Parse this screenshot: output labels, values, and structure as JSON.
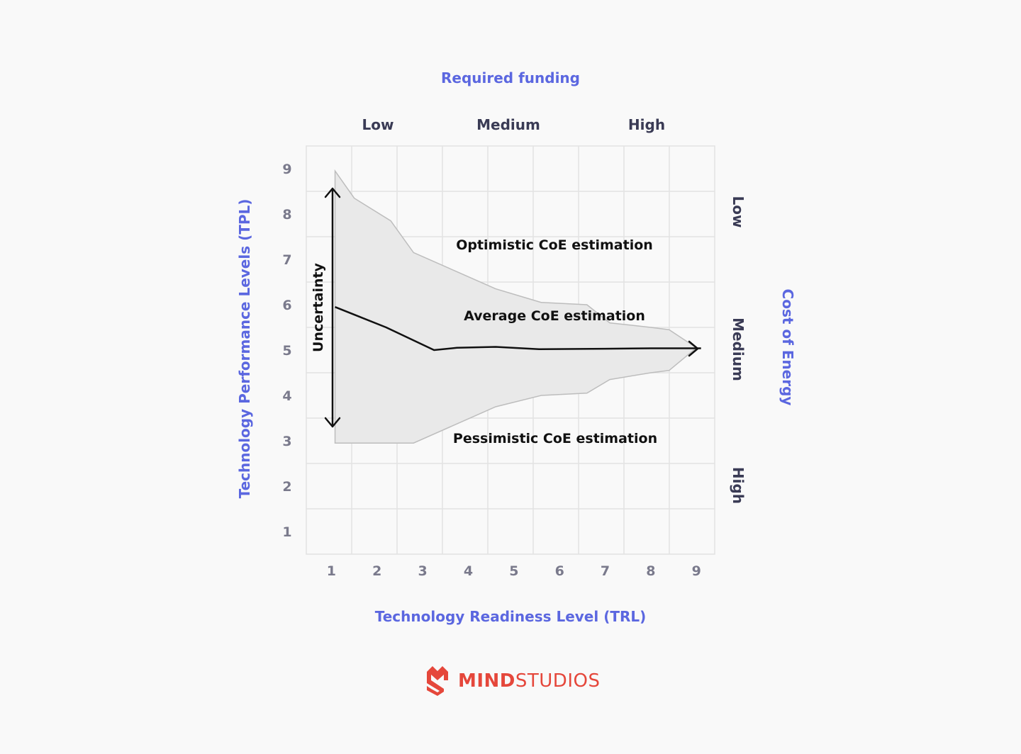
{
  "diagram": {
    "top_title": "Required funding",
    "funding_levels": [
      "Low",
      "Medium",
      "High"
    ],
    "x_label": "Technology Readiness Level (TRL)",
    "y_label": "Technology Performance Levels (TPL)",
    "right_title": "Cost of Energy",
    "energy_levels": [
      "Low",
      "Medium",
      "High"
    ],
    "x_ticks": [
      "1",
      "2",
      "3",
      "4",
      "5",
      "6",
      "7",
      "8",
      "9"
    ],
    "y_ticks": [
      "1",
      "2",
      "3",
      "4",
      "5",
      "6",
      "7",
      "8",
      "9"
    ],
    "optimistic_label": "Optimistic CoE estimation",
    "average_label": "Average CoE estimation",
    "pessimistic_label": "Pessimistic CoE estimation",
    "uncertainty_label": "Uncertainty",
    "band_color": "#e9e9e9",
    "axis_blue": "#5b67e0"
  },
  "chart_data": {
    "type": "area",
    "x": [
      1.08,
      1.5,
      2.3,
      2.8,
      4.6,
      5.6,
      6.6,
      7.1,
      8.0,
      8.4,
      9.0
    ],
    "optimistic": [
      8.95,
      8.35,
      7.85,
      7.15,
      6.35,
      6.05,
      6.0,
      5.6,
      5.5,
      5.45,
      5.05
    ],
    "pessimistic": [
      2.95,
      2.95,
      2.95,
      2.95,
      3.75,
      4.0,
      4.05,
      4.35,
      4.5,
      4.55,
      5.05
    ],
    "average": {
      "x": [
        1.08,
        2.2,
        3.25,
        3.75,
        4.6,
        5.55,
        7.0,
        8.0,
        9.1
      ],
      "y": [
        5.95,
        5.5,
        5.0,
        5.05,
        5.07,
        5.02,
        5.03,
        5.04,
        5.04
      ]
    },
    "xlim": [
      0.45,
      9.4
    ],
    "ylim": [
      0.5,
      9.5
    ],
    "grid": true
  },
  "brand": {
    "name_bold": "MIND",
    "name_light": "STUDIOS",
    "icon": "mindstudios-logo-icon",
    "color": "#e5473b"
  }
}
